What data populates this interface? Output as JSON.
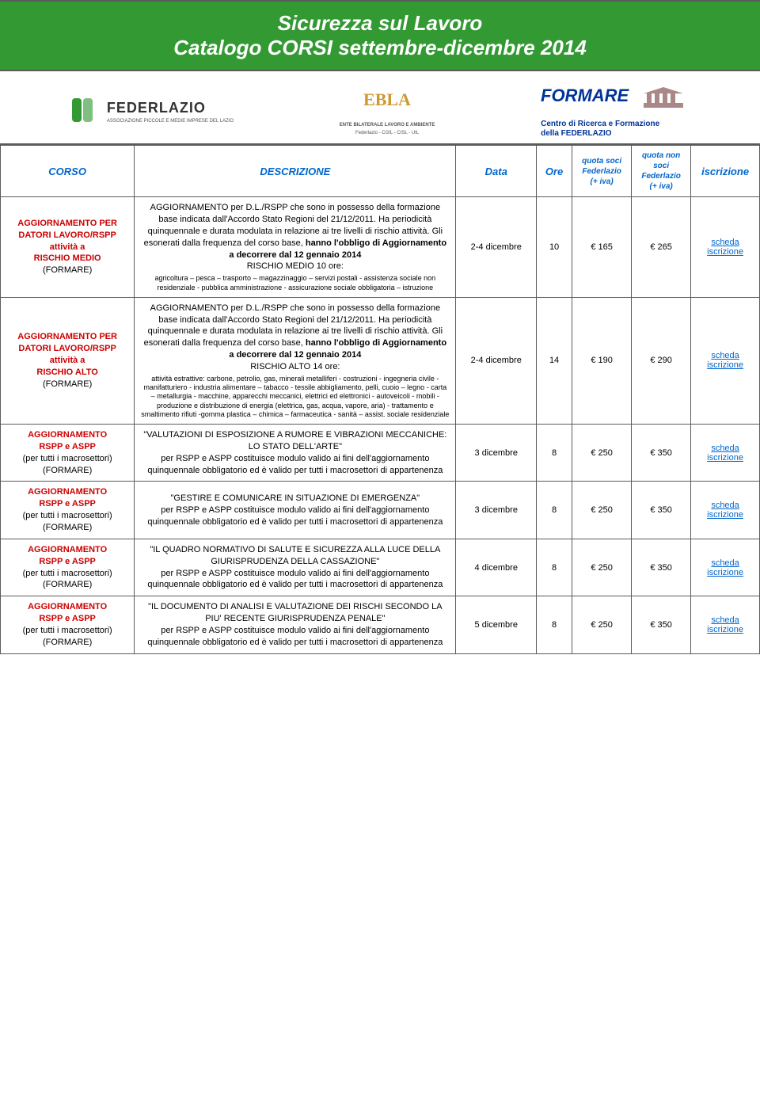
{
  "header": {
    "title": "Sicurezza sul Lavoro",
    "subtitle": "Catalogo CORSI settembre-dicembre 2014",
    "bg_color": "#339933",
    "text_color": "#ffffff"
  },
  "logos": {
    "federlazio": {
      "name": "FEDERLAZIO",
      "tag": "ASSOCIAZIONE PICCOLE E MEDIE IMPRESE DEL LAZIO",
      "fill": "#339933"
    },
    "ebla": {
      "name": "EBLA",
      "tag": "ENTE BILATERALE LAVORO E AMBIENTE",
      "tag2": "Federlazio - CGIL - CISL - UIL",
      "fill": "#cc9933"
    },
    "formare": {
      "name": "FORMARE",
      "tag": "Centro di Ricerca e Formazione",
      "tag2": "della FEDERLAZIO",
      "fill": "#003399"
    }
  },
  "table": {
    "headers": {
      "corso": "CORSO",
      "descrizione": "DESCRIZIONE",
      "data": "Data",
      "ore": "Ore",
      "q1": "quota soci\nFederlazio\n(+ iva)",
      "q2": "quota non\nsoci\nFederlazio\n(+ iva)",
      "iscr": "iscrizione"
    },
    "header_color": "#0066cc",
    "corso_color": "#cc0000",
    "link_color": "#0066cc",
    "border_color": "#5b5b5b",
    "rows": [
      {
        "corso_lines": [
          "AGGIORNAMENTO PER",
          "DATORI LAVORO/RSPP",
          "attività a",
          "RISCHIO MEDIO"
        ],
        "corso_tail": "(FORMARE)",
        "desc_pre": "AGGIORNAMENTO per D.L./RSPP che sono in possesso della formazione base indicata dall'Accordo Stato Regioni del 21/12/2011. Ha periodicità quinquennale e durata modulata in relazione ai tre livelli di rischio attività. Gli esonerati dalla frequenza del corso base, ",
        "desc_bold": "hanno l'obbligo di Aggiornamento a decorrere dal 12 gennaio 2014",
        "desc_sub": "RISCHIO MEDIO 10 ore:",
        "desc_small": "agricoltura – pesca – trasporto – magazzinaggio – servizi postali - assistenza sociale non residenziale - pubblica amministrazione - assicurazione sociale obbligatoria – istruzione",
        "data": "2-4 dicembre",
        "ore": "10",
        "q1": "€ 165",
        "q2": "€ 265",
        "iscr": "scheda iscrizione"
      },
      {
        "corso_lines": [
          "AGGIORNAMENTO PER",
          "DATORI LAVORO/RSPP",
          "attività a",
          "RISCHIO ALTO"
        ],
        "corso_tail": "(FORMARE)",
        "desc_pre": "AGGIORNAMENTO per D.L./RSPP che sono in possesso della formazione base indicata dall'Accordo Stato Regioni del 21/12/2011. Ha periodicità quinquennale e durata modulata in relazione ai tre livelli di rischio attività. Gli esonerati dalla frequenza del corso base, ",
        "desc_bold": "hanno l'obbligo di Aggiornamento a decorrere dal 12 gennaio 2014",
        "desc_sub": "RISCHIO ALTO 14 ore:",
        "desc_small": "attività estrattive: carbone, petrolio, gas, minerali metalliferi - costruzioni - ingegneria civile - manifatturiero - industria alimentare – tabacco - tessile abbigliamento, pelli, cuoio – legno - carta – metallurgia - macchine, apparecchi meccanici, elettrici ed elettronici - autoveicoli - mobili - produzione e distribuzione di energia (elettrica, gas, acqua, vapore, aria) - trattamento e smaltimento rifiuti -gomma plastica – chimica – farmaceutica - sanità – assist. sociale residenziale",
        "data": "2-4 dicembre",
        "ore": "14",
        "q1": "€ 190",
        "q2": "€ 290",
        "iscr": "scheda iscrizione"
      },
      {
        "corso_lines": [
          "AGGIORNAMENTO",
          "RSPP e ASPP"
        ],
        "corso_mid": "(per tutti i macrosettori)",
        "corso_tail": "(FORMARE)",
        "desc_title": "\"VALUTAZIONI DI ESPOSIZIONE A RUMORE E VIBRAZIONI MECCANICHE: LO STATO DELL'ARTE\"",
        "desc_body": "per RSPP e ASPP costituisce modulo valido ai fini dell'aggiornamento quinquennale obbligatorio ed è valido per tutti i macrosettori di appartenenza",
        "data": "3 dicembre",
        "ore": "8",
        "q1": "€ 250",
        "q2": "€ 350",
        "iscr": "scheda iscrizione"
      },
      {
        "corso_lines": [
          "AGGIORNAMENTO",
          "RSPP e ASPP"
        ],
        "corso_mid": "(per tutti i macrosettori)",
        "corso_tail": "(FORMARE)",
        "desc_title": "\"GESTIRE E COMUNICARE IN SITUAZIONE DI EMERGENZA\"",
        "desc_body": "per RSPP e ASPP costituisce modulo valido ai fini dell'aggiornamento quinquennale obbligatorio ed è valido per tutti i macrosettori di appartenenza",
        "data": "3 dicembre",
        "ore": "8",
        "q1": "€ 250",
        "q2": "€ 350",
        "iscr": "scheda iscrizione"
      },
      {
        "corso_lines": [
          "AGGIORNAMENTO",
          "RSPP e ASPP"
        ],
        "corso_mid": "(per tutti i macrosettori)",
        "corso_tail": "(FORMARE)",
        "desc_title": "\"IL QUADRO NORMATIVO DI SALUTE E SICUREZZA ALLA LUCE DELLA GIURISPRUDENZA DELLA CASSAZIONE\"",
        "desc_body": "per RSPP e ASPP costituisce modulo valido ai fini dell'aggiornamento quinquennale obbligatorio ed è valido per tutti i macrosettori di appartenenza",
        "data": "4 dicembre",
        "ore": "8",
        "q1": "€ 250",
        "q2": "€ 350",
        "iscr": "scheda iscrizione"
      },
      {
        "corso_lines": [
          "AGGIORNAMENTO",
          "RSPP e ASPP"
        ],
        "corso_mid": "(per tutti i macrosettori)",
        "corso_tail": "(FORMARE)",
        "desc_title": "\"IL DOCUMENTO DI ANALISI E VALUTAZIONE DEI RISCHI SECONDO LA PIU' RECENTE GIURISPRUDENZA PENALE\"",
        "desc_body": "per RSPP e ASPP costituisce modulo valido ai fini dell'aggiornamento quinquennale obbligatorio ed è valido per tutti i macrosettori di appartenenza",
        "data": "5 dicembre",
        "ore": "8",
        "q1": "€ 250",
        "q2": "€ 350",
        "iscr": "scheda iscrizione"
      }
    ]
  }
}
